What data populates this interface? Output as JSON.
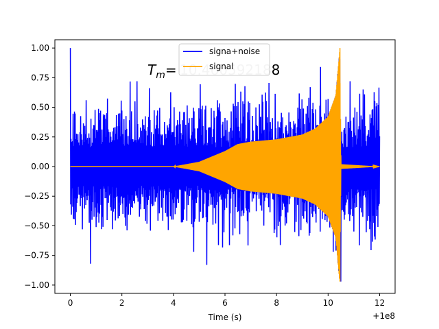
{
  "chart_data": {
    "type": "line",
    "title": "",
    "xlabel": "Time (s)",
    "ylabel": "",
    "x_offset_text": "+1e8",
    "xlim": [
      -0.6,
      12.6
    ],
    "ylim": [
      -1.07,
      1.07
    ],
    "x_ticks": [
      0,
      2,
      4,
      6,
      8,
      10,
      12
    ],
    "x_tick_labels": [
      "0",
      "2",
      "4",
      "6",
      "8",
      "10",
      "12"
    ],
    "y_ticks": [
      -1.0,
      -0.75,
      -0.5,
      -0.25,
      0.0,
      0.25,
      0.5,
      0.75,
      1.0
    ],
    "y_tick_labels": [
      "−1.00",
      "−0.75",
      "−0.50",
      "−0.25",
      "0.00",
      "0.25",
      "0.50",
      "0.75",
      "1.00"
    ],
    "grid": false,
    "legend_position": "top-center",
    "series": [
      {
        "name": "signa+noise",
        "color": "#0000ff",
        "x_range": [
          0,
          12
        ],
        "typical_amplitude": 0.36,
        "peak_values": [
          {
            "x": 0.0,
            "y": 1.0
          },
          {
            "x": 0.8,
            "y": -0.82
          },
          {
            "x": 5.3,
            "y": -0.83
          },
          {
            "x": 9.7,
            "y": 0.84
          },
          {
            "x": 10.5,
            "y": -0.97
          }
        ]
      },
      {
        "name": "signal",
        "color": "#ffa500",
        "x_range": [
          0,
          12
        ],
        "envelope": [
          {
            "x": 0.0,
            "y": 0.0
          },
          {
            "x": 4.0,
            "y": 0.0
          },
          {
            "x": 5.0,
            "y": 0.04
          },
          {
            "x": 6.0,
            "y": 0.13
          },
          {
            "x": 6.5,
            "y": 0.19
          },
          {
            "x": 7.0,
            "y": 0.21
          },
          {
            "x": 8.0,
            "y": 0.23
          },
          {
            "x": 9.0,
            "y": 0.27
          },
          {
            "x": 9.5,
            "y": 0.32
          },
          {
            "x": 10.0,
            "y": 0.42
          },
          {
            "x": 10.3,
            "y": 0.6
          },
          {
            "x": 10.45,
            "y": 0.97
          },
          {
            "x": 10.5,
            "y": 0.02
          },
          {
            "x": 12.0,
            "y": 0.0
          }
        ],
        "spike": {
          "x": 10.46,
          "y_max": 1.0,
          "y_min": -0.97
        }
      }
    ],
    "annotation": {
      "prefix": "Tm=",
      "value": "10.460592188",
      "value_color": "#c8c8c8",
      "tail_color": "#000000"
    }
  }
}
